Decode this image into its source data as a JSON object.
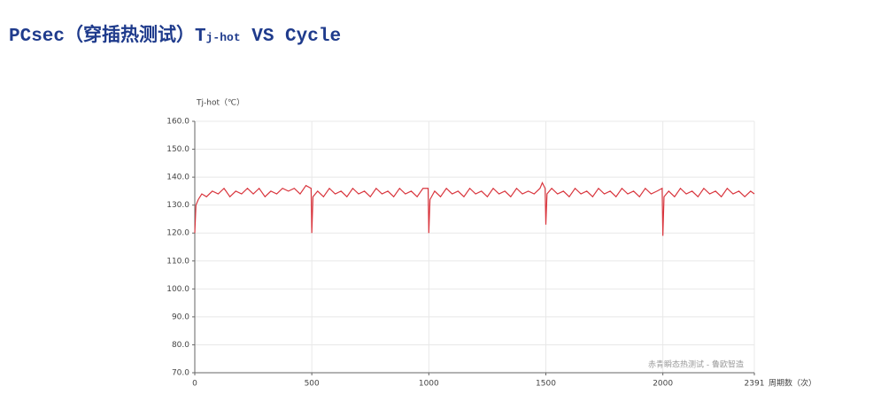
{
  "chart_data": {
    "type": "line",
    "title": "PCsec（穿插热测试）T",
    "title_subscript": "j-hot",
    "title_suffix": " VS Cycle",
    "y_label": "Tj-hot（℃）",
    "x_label": "周期数（次）",
    "watermark": "赤青瞬态热测试 - 鲁欧智造",
    "xlim": [
      0,
      2391
    ],
    "xticks": [
      0,
      500,
      1000,
      1500,
      2000,
      2391
    ],
    "ylim": [
      70,
      160
    ],
    "yticks": [
      {
        "value": 70,
        "label": "70.0"
      },
      {
        "value": 80,
        "label": "80.0"
      },
      {
        "value": 90,
        "label": "90.0"
      },
      {
        "value": 100,
        "label": "100.0"
      },
      {
        "value": 110,
        "label": "110.0"
      },
      {
        "value": 120,
        "label": "120.0"
      },
      {
        "value": 130,
        "label": "130.0"
      },
      {
        "value": 140,
        "label": "140.0"
      },
      {
        "value": 150,
        "label": "150.0"
      },
      {
        "value": 160,
        "label": "160.0"
      }
    ],
    "grid": true,
    "x": [
      0,
      5,
      15,
      30,
      50,
      75,
      100,
      125,
      150,
      175,
      200,
      225,
      250,
      275,
      300,
      325,
      350,
      375,
      400,
      425,
      450,
      475,
      497,
      500,
      505,
      525,
      550,
      575,
      600,
      625,
      650,
      675,
      700,
      725,
      750,
      775,
      800,
      825,
      850,
      875,
      900,
      925,
      950,
      975,
      997,
      1000,
      1005,
      1025,
      1050,
      1075,
      1100,
      1125,
      1150,
      1175,
      1200,
      1225,
      1250,
      1275,
      1300,
      1325,
      1350,
      1375,
      1400,
      1425,
      1450,
      1475,
      1485,
      1497,
      1500,
      1505,
      1525,
      1550,
      1575,
      1600,
      1625,
      1650,
      1675,
      1700,
      1725,
      1750,
      1775,
      1800,
      1825,
      1850,
      1875,
      1900,
      1925,
      1950,
      1975,
      1997,
      2000,
      2005,
      2025,
      2050,
      2075,
      2100,
      2125,
      2150,
      2175,
      2200,
      2225,
      2250,
      2275,
      2300,
      2325,
      2350,
      2375,
      2391
    ],
    "series": [
      {
        "color": "#d9363e",
        "values": [
          120,
          130,
          132,
          134,
          133,
          135,
          134,
          136,
          133,
          135,
          134,
          136,
          134,
          136,
          133,
          135,
          134,
          136,
          135,
          136,
          134,
          137,
          136,
          120,
          133,
          135,
          133,
          136,
          134,
          135,
          133,
          136,
          134,
          135,
          133,
          136,
          134,
          135,
          133,
          136,
          134,
          135,
          133,
          136,
          136,
          120,
          132,
          135,
          133,
          136,
          134,
          135,
          133,
          136,
          134,
          135,
          133,
          136,
          134,
          135,
          133,
          136,
          134,
          135,
          134,
          136,
          138,
          136,
          123,
          134,
          136,
          134,
          135,
          133,
          136,
          134,
          135,
          133,
          136,
          134,
          135,
          133,
          136,
          134,
          135,
          133,
          136,
          134,
          135,
          136,
          119,
          133,
          135,
          133,
          136,
          134,
          135,
          133,
          136,
          134,
          135,
          133,
          136,
          134,
          135,
          133,
          135,
          134
        ]
      }
    ]
  }
}
